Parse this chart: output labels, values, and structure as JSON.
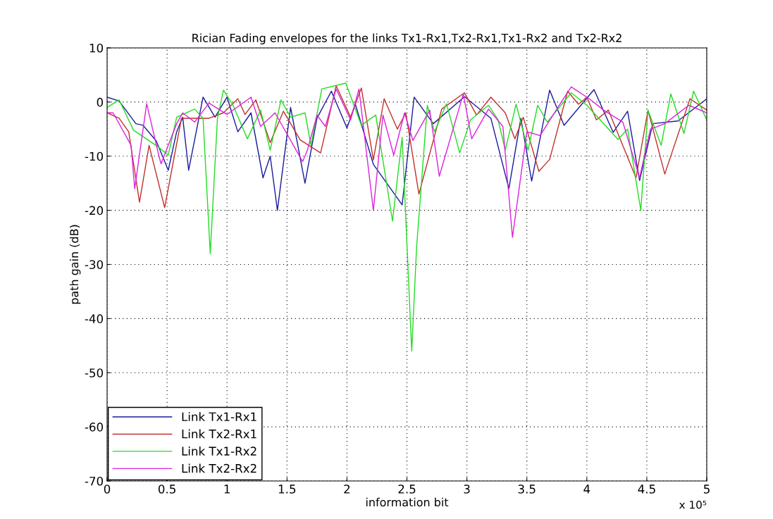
{
  "chart_data": {
    "type": "line",
    "title": "Rician Fading envelopes for the links Tx1-Rx1,Tx2-Rx1,Tx1-Rx2 and Tx2-Rx2",
    "xlabel": "information bit",
    "ylabel": "path gain (dB)",
    "annotations": [
      "x 10⁵"
    ],
    "xlim": [
      0,
      5
    ],
    "ylim": [
      -70,
      10
    ],
    "xticks": [
      0,
      0.5,
      1,
      1.5,
      2,
      2.5,
      3,
      3.5,
      4,
      4.5,
      5
    ],
    "yticks": [
      -70,
      -60,
      -50,
      -40,
      -30,
      -20,
      -10,
      0,
      10
    ],
    "grid": true,
    "legend": "bottom left",
    "series": [
      {
        "name": "Link Tx1-Rx1",
        "color": "#1a1a9c",
        "x": [
          0,
          0.1,
          0.24,
          0.3,
          0.41,
          0.51,
          0.58,
          0.63,
          0.68,
          0.8,
          0.9,
          1.0,
          1.09,
          1.2,
          1.3,
          1.36,
          1.42,
          1.53,
          1.65,
          1.75,
          1.87,
          2.0,
          2.07,
          2.22,
          2.46,
          2.56,
          2.72,
          2.98,
          3.2,
          3.35,
          3.45,
          3.54,
          3.69,
          3.81,
          4.06,
          4.22,
          4.34,
          4.44,
          4.55,
          4.76,
          5.0
        ],
        "values": [
          0.9,
          0.2,
          -4,
          -4.3,
          -7.2,
          -12.6,
          -5.5,
          -2.8,
          -12.6,
          0.9,
          -2.8,
          0.9,
          -5.5,
          -2,
          -14,
          -10,
          -20,
          -1,
          -15,
          -3,
          2,
          -4.8,
          -0.4,
          -11.5,
          -19,
          0.9,
          -4,
          1,
          -3,
          -16,
          -3,
          -14.6,
          2.2,
          -4.3,
          2.3,
          -5.6,
          -1.7,
          -14.5,
          -4,
          -3.5,
          0.6
        ]
      },
      {
        "name": "Link Tx2-Rx1",
        "color": "#c0302a",
        "x": [
          0,
          0.1,
          0.18,
          0.27,
          0.35,
          0.48,
          0.62,
          0.85,
          0.97,
          1.09,
          1.15,
          1.24,
          1.36,
          1.47,
          1.61,
          1.78,
          1.91,
          2.03,
          2.12,
          2.22,
          2.31,
          2.42,
          2.49,
          2.6,
          2.79,
          2.98,
          3.08,
          3.2,
          3.32,
          3.4,
          3.47,
          3.6,
          3.69,
          3.84,
          3.93,
          4.0,
          4.08,
          4.18,
          4.41,
          4.51,
          4.65,
          4.86,
          5.0
        ],
        "values": [
          -2,
          -3,
          -5.5,
          -18.5,
          -8,
          -19.5,
          -3,
          -3,
          -2,
          0.6,
          -2.3,
          0.4,
          -7.5,
          -1.7,
          -7,
          -9.4,
          3,
          -2.8,
          2.6,
          -10.7,
          0.6,
          -5,
          -2,
          -17,
          -1.3,
          1.7,
          -2.4,
          0.9,
          -2,
          -6.8,
          -2.8,
          -12.8,
          -10.6,
          2,
          -0.4,
          0.9,
          -3.3,
          -1.5,
          -14,
          -1.5,
          -13.3,
          0.6,
          -1.5
        ]
      },
      {
        "name": "Link Tx1-Rx2",
        "color": "#22dd22",
        "x": [
          0,
          0.1,
          0.22,
          0.42,
          0.51,
          0.58,
          0.73,
          0.8,
          0.86,
          0.92,
          0.97,
          1.05,
          1.17,
          1.28,
          1.36,
          1.45,
          1.53,
          1.65,
          1.7,
          1.79,
          1.99,
          2.12,
          2.24,
          2.38,
          2.46,
          2.54,
          2.58,
          2.67,
          2.73,
          2.83,
          2.94,
          3.03,
          3.18,
          3.26,
          3.32,
          3.41,
          3.51,
          3.59,
          3.67,
          3.87,
          4.0,
          4.26,
          4.34,
          4.45,
          4.51,
          4.62,
          4.7,
          4.81,
          4.89,
          5.0
        ],
        "values": [
          -1,
          0.4,
          -5.2,
          -8.2,
          -9.8,
          -2.8,
          -1.3,
          -3,
          -28,
          -3,
          2.2,
          -0.6,
          -6.8,
          -1.5,
          -8.9,
          0.4,
          -2.8,
          -2,
          -8,
          2.4,
          3.5,
          -4.3,
          -2.4,
          -22,
          -6.5,
          -46,
          -27,
          -0.6,
          -5.5,
          -0.3,
          -9.4,
          -3.3,
          -0.6,
          -3.3,
          -8.9,
          -0.4,
          -8.9,
          -0.6,
          -3.7,
          1.7,
          -0.6,
          -6.9,
          -5,
          -20,
          -1.5,
          -8,
          1.5,
          -5.8,
          2,
          -3.3
        ]
      },
      {
        "name": "Link Tx2-Rx2",
        "color": "#dd22dd",
        "x": [
          0,
          0.05,
          0.2,
          0.23,
          0.33,
          0.43,
          0.45,
          0.58,
          0.63,
          0.73,
          0.85,
          1.0,
          1.2,
          1.28,
          1.4,
          1.63,
          1.67,
          1.75,
          1.82,
          1.91,
          2.03,
          2.1,
          2.22,
          2.3,
          2.39,
          2.48,
          2.55,
          2.69,
          2.77,
          2.97,
          3.04,
          3.18,
          3.3,
          3.38,
          3.5,
          3.61,
          3.77,
          3.87,
          4.02,
          4.14,
          4.3,
          4.44,
          4.53,
          4.65,
          4.85,
          5.0
        ],
        "values": [
          -2,
          -2,
          -8,
          -16,
          -0.3,
          -9.8,
          -11.4,
          -4,
          -2,
          -3.7,
          -0.2,
          -2.3,
          0.9,
          -4.5,
          -2,
          -11,
          -8.9,
          -2.4,
          -4.5,
          2.4,
          -3.3,
          2.4,
          -20,
          -2.4,
          -9.8,
          -2,
          -7.1,
          -1.5,
          -13.7,
          1.5,
          -6.8,
          -1.3,
          -4.5,
          -25,
          -5.5,
          -6.2,
          -0.6,
          2.8,
          0.6,
          -1.5,
          -3.7,
          -14,
          -5,
          -4,
          -0.6,
          -2
        ]
      }
    ]
  }
}
